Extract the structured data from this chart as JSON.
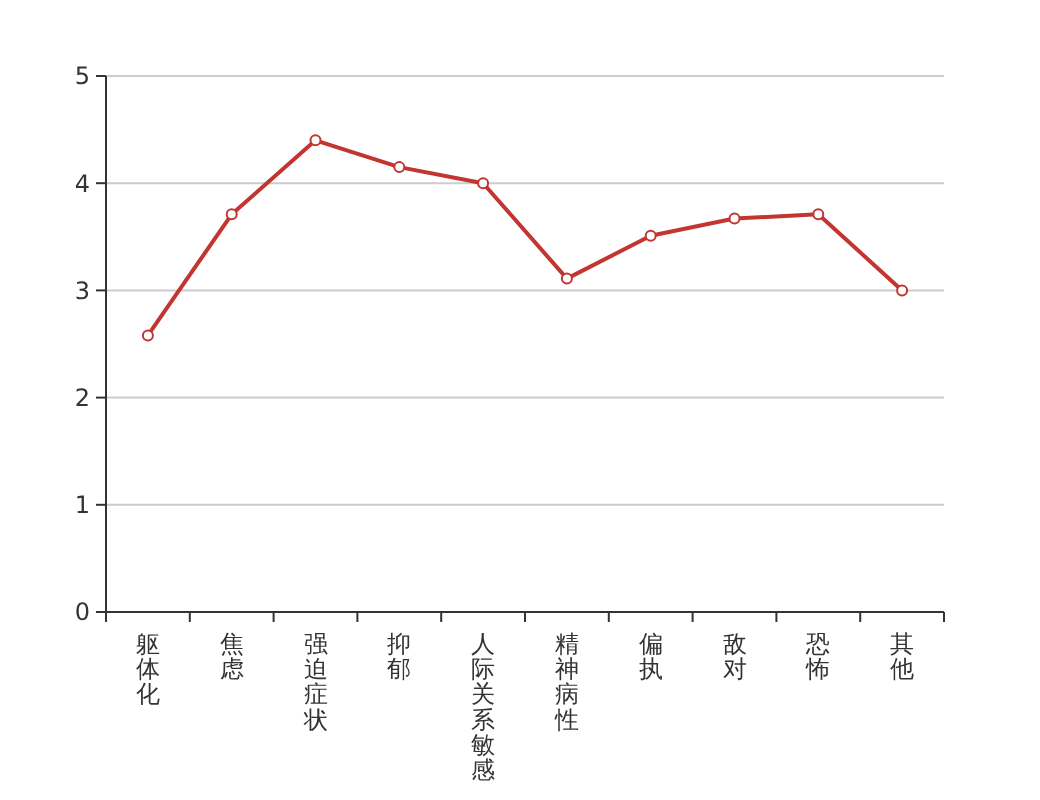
{
  "chart_data": {
    "type": "line",
    "categories": [
      "躯体化",
      "焦虑",
      "强迫症状",
      "抑郁",
      "人际关系敏感",
      "精神病性",
      "偏执",
      "敌对",
      "恐怖",
      "其他"
    ],
    "series": [
      {
        "color": "#c23531",
        "values": [
          2.58,
          3.71,
          4.4,
          4.15,
          4.0,
          3.11,
          3.51,
          3.67,
          3.71,
          3.0
        ]
      }
    ],
    "ylim": [
      0,
      5
    ],
    "yticks": [
      0,
      1,
      2,
      3,
      4,
      5
    ],
    "grid": "y",
    "marker": "circle",
    "line_style": "solid"
  }
}
